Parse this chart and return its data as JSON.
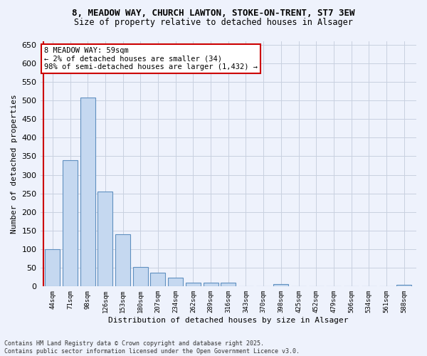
{
  "title_line1": "8, MEADOW WAY, CHURCH LAWTON, STOKE-ON-TRENT, ST7 3EW",
  "title_line2": "Size of property relative to detached houses in Alsager",
  "categories": [
    "44sqm",
    "71sqm",
    "98sqm",
    "126sqm",
    "153sqm",
    "180sqm",
    "207sqm",
    "234sqm",
    "262sqm",
    "289sqm",
    "316sqm",
    "343sqm",
    "370sqm",
    "398sqm",
    "425sqm",
    "452sqm",
    "479sqm",
    "506sqm",
    "534sqm",
    "561sqm",
    "588sqm"
  ],
  "values": [
    100,
    340,
    507,
    255,
    140,
    53,
    37,
    24,
    10,
    10,
    10,
    0,
    0,
    6,
    0,
    0,
    0,
    0,
    0,
    0,
    5
  ],
  "bar_color": "#c5d8f0",
  "bar_edge_color": "#6090c0",
  "ylabel": "Number of detached properties",
  "xlabel": "Distribution of detached houses by size in Alsager",
  "ylim": [
    0,
    660
  ],
  "yticks": [
    0,
    50,
    100,
    150,
    200,
    250,
    300,
    350,
    400,
    450,
    500,
    550,
    600,
    650
  ],
  "annotation_title": "8 MEADOW WAY: 59sqm",
  "annotation_line1": "← 2% of detached houses are smaller (34)",
  "annotation_line2": "98% of semi-detached houses are larger (1,432) →",
  "annotation_box_color": "#ffffff",
  "annotation_box_edge": "#cc0000",
  "redline_color": "#cc0000",
  "footer_line1": "Contains HM Land Registry data © Crown copyright and database right 2025.",
  "footer_line2": "Contains public sector information licensed under the Open Government Licence v3.0.",
  "bg_color": "#eef2fc",
  "grid_color": "#c8d0e0"
}
